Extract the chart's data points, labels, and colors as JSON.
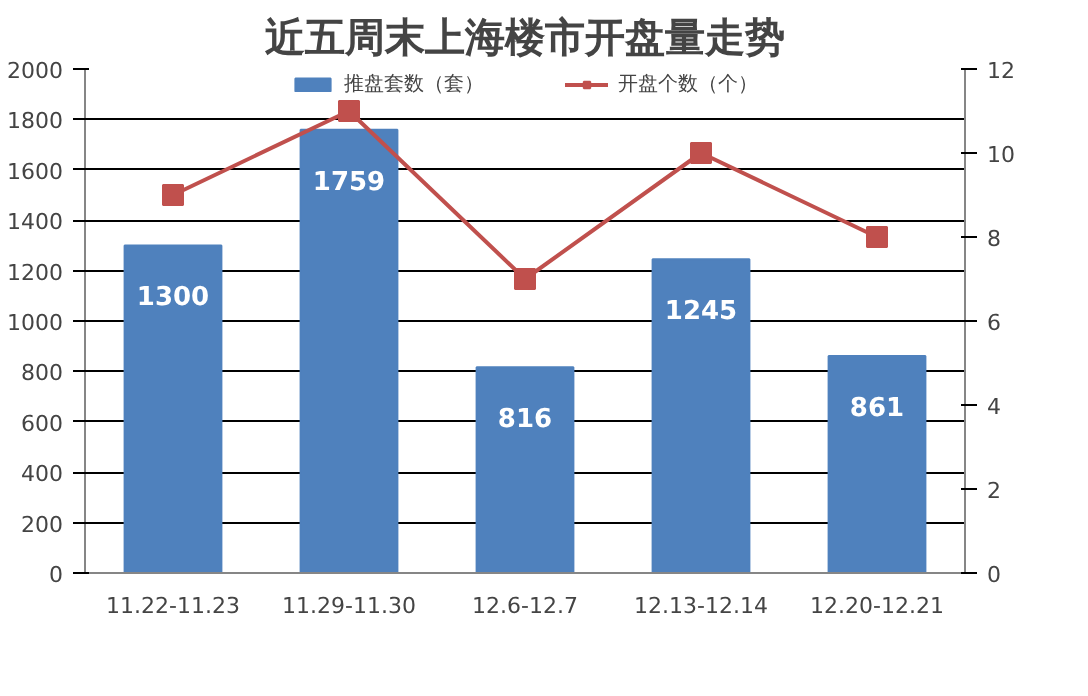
{
  "chart_data": {
    "type": "bar",
    "title": "近五周末上海楼市开盘量走势",
    "categories": [
      "11.22-11.23",
      "11.29-11.30",
      "12.6-12.7",
      "12.13-12.14",
      "12.20-12.21"
    ],
    "series": [
      {
        "name": "推盘套数（套）",
        "color": "#4f81bd",
        "values": [
          1300,
          1759,
          816,
          1245,
          861
        ],
        "value_labels": [
          "1300",
          "1759",
          "816",
          "1245",
          "861"
        ]
      },
      {
        "name": "开盘个数（个）",
        "type": "line",
        "axis": "y2",
        "color": "#c0504d",
        "marker": "square",
        "values": [
          9,
          11,
          7,
          10,
          8
        ]
      }
    ],
    "ylim": [
      0,
      2000
    ],
    "yticks": [
      0,
      200,
      400,
      600,
      800,
      1000,
      1200,
      1400,
      1600,
      1800,
      2000
    ],
    "y2lim": [
      0,
      12
    ],
    "y2ticks": [
      0,
      2,
      4,
      6,
      8,
      10,
      12
    ],
    "grid": "y",
    "legend": "top"
  }
}
